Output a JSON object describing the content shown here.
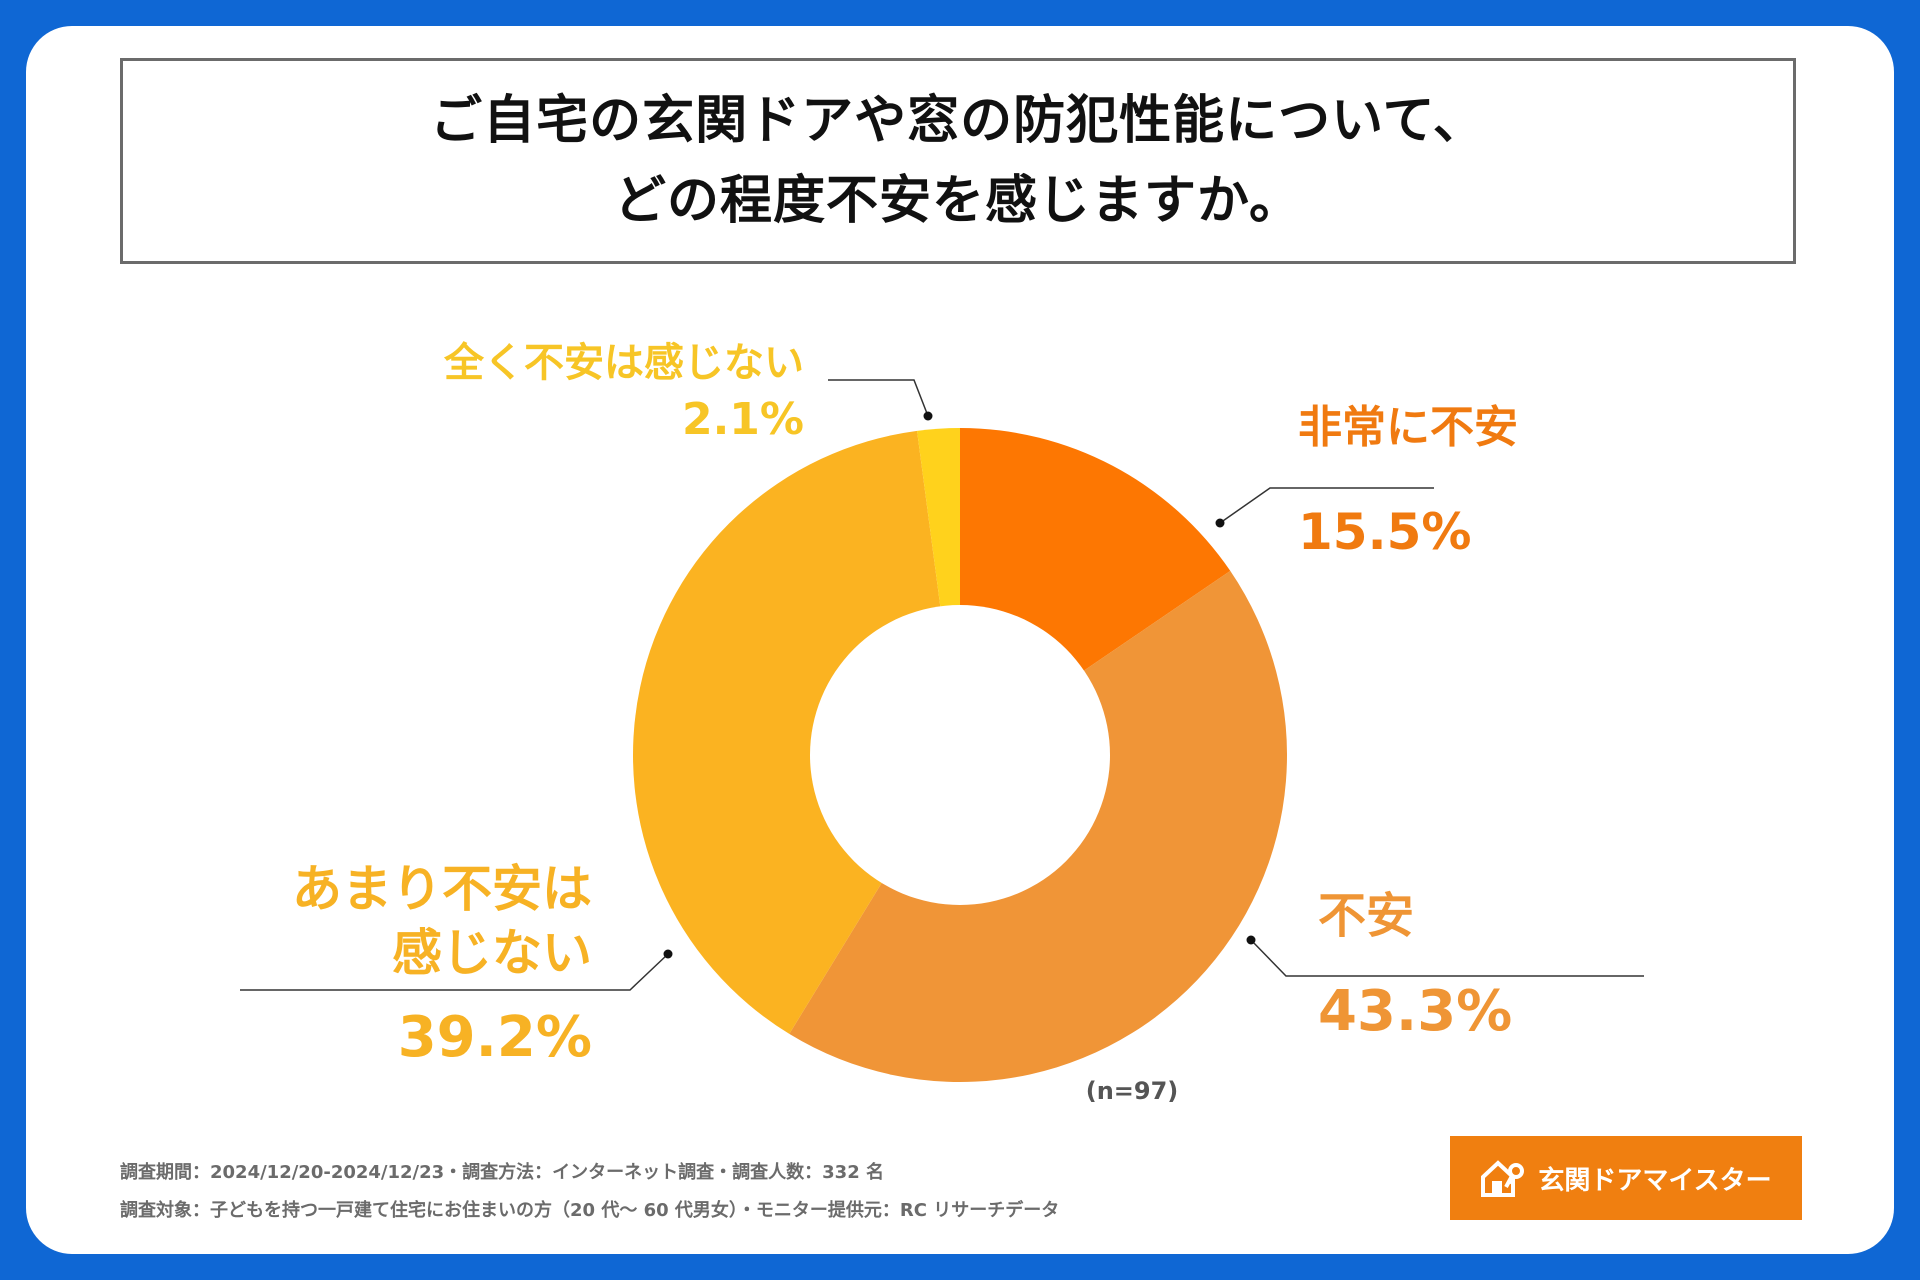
{
  "title": {
    "line1": "ご自宅の玄関ドアや窓の防犯性能について、",
    "line2": "どの程度不安を感じますか。"
  },
  "chart_data": {
    "type": "pie",
    "variant": "donut",
    "title": "ご自宅の玄関ドアや窓の防犯性能について、どの程度不安を感じますか。",
    "slices": [
      {
        "label": "非常に不安",
        "label_lines": [
          "非常に不安"
        ],
        "value": 15.5,
        "value_text": "15.5%",
        "color": "#fd7702",
        "text_color": "#f07a10"
      },
      {
        "label": "不安",
        "label_lines": [
          "不安"
        ],
        "value": 43.3,
        "value_text": "43.3%",
        "color": "#f09537",
        "text_color": "#ef9535"
      },
      {
        "label": "あまり不安は感じない",
        "label_lines": [
          "あまり不安は",
          "感じない"
        ],
        "value": 39.2,
        "value_text": "39.2%",
        "color": "#fbb321",
        "text_color": "#f7b224"
      },
      {
        "label": "全く不安は感じない",
        "label_lines": [
          "全く不安は感じない"
        ],
        "value": 2.1,
        "value_text": "2.1%",
        "color": "#ffd21c",
        "text_color": "#f7c526"
      }
    ],
    "sample_size": "(n=97)"
  },
  "footer": {
    "line1": "調査期間：2024/12/20-2024/12/23・調査方法：インターネット調査・調査人数：332 名",
    "line2": "調査対象：子どもを持つ一戸建て住宅にお住まいの方（20 代～ 60 代男女）・モニター提供元：RC リサーチデータ"
  },
  "logo": {
    "text": "玄関ドアマイスター",
    "icon": "house-key-icon"
  },
  "colors": {
    "background": "#0f67d4",
    "card": "#ffffff",
    "logo_bg": "#f07f10"
  }
}
